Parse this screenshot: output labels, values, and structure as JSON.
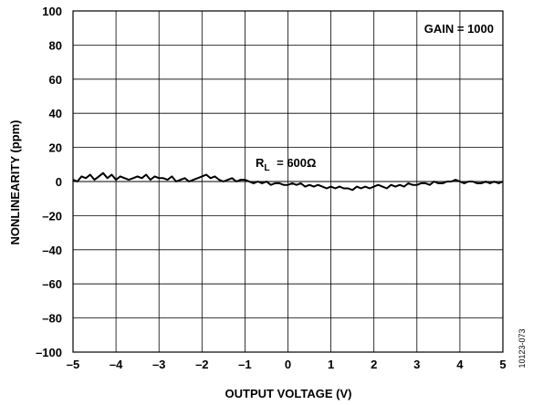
{
  "chart_data": {
    "type": "line",
    "title": "",
    "xlabel": "OUTPUT VOLTAGE (V)",
    "ylabel": "NONLINEARITY (ppm)",
    "xlim": [
      -5,
      5
    ],
    "ylim": [
      -100,
      100
    ],
    "x_ticks": [
      -5,
      -4,
      -3,
      -2,
      -1,
      0,
      1,
      2,
      3,
      4,
      5
    ],
    "y_ticks": [
      -100,
      -80,
      -60,
      -40,
      -20,
      0,
      20,
      40,
      60,
      80,
      100
    ],
    "x_tick_labels": [
      "–5",
      "–4",
      "–3",
      "–2",
      "–1",
      "0",
      "1",
      "2",
      "3",
      "4",
      "5"
    ],
    "y_tick_labels": [
      "–100",
      "–80",
      "–60",
      "–40",
      "–20",
      "0",
      "20",
      "40",
      "60",
      "80",
      "100"
    ],
    "grid": true,
    "legend": "none",
    "annotations": {
      "gain": "GAIN = 1000",
      "load_main": "R",
      "load_sub": "L",
      "load_value": " = 600Ω"
    },
    "figure_id": "10123-073",
    "series": [
      {
        "x": [
          -5.0,
          -4.9,
          -4.8,
          -4.7,
          -4.6,
          -4.5,
          -4.4,
          -4.3,
          -4.2,
          -4.1,
          -4.0,
          -3.9,
          -3.8,
          -3.7,
          -3.6,
          -3.5,
          -3.4,
          -3.3,
          -3.2,
          -3.1,
          -3.0,
          -2.9,
          -2.8,
          -2.7,
          -2.6,
          -2.5,
          -2.4,
          -2.3,
          -2.2,
          -2.1,
          -2.0,
          -1.9,
          -1.8,
          -1.7,
          -1.6,
          -1.5,
          -1.4,
          -1.3,
          -1.2,
          -1.1,
          -1.0,
          -0.9,
          -0.8,
          -0.7,
          -0.6,
          -0.5,
          -0.4,
          -0.3,
          -0.2,
          -0.1,
          0.0,
          0.1,
          0.2,
          0.3,
          0.4,
          0.5,
          0.6,
          0.7,
          0.8,
          0.9,
          1.0,
          1.1,
          1.2,
          1.3,
          1.4,
          1.5,
          1.6,
          1.7,
          1.8,
          1.9,
          2.0,
          2.1,
          2.2,
          2.3,
          2.4,
          2.5,
          2.6,
          2.7,
          2.8,
          2.9,
          3.0,
          3.1,
          3.2,
          3.3,
          3.4,
          3.5,
          3.6,
          3.7,
          3.8,
          3.9,
          4.0,
          4.1,
          4.2,
          4.3,
          4.4,
          4.5,
          4.6,
          4.7,
          4.8,
          4.9,
          5.0
        ],
        "values": [
          1,
          0,
          3,
          2,
          4,
          1,
          3,
          5,
          2,
          4,
          1,
          3,
          2,
          1,
          2,
          3,
          2,
          4,
          1,
          3,
          2,
          2,
          1,
          3,
          0,
          1,
          2,
          0,
          1,
          2,
          3,
          4,
          2,
          3,
          1,
          0,
          1,
          2,
          0,
          1,
          1,
          0,
          -1,
          0,
          -1,
          0,
          -2,
          -1,
          -1,
          -2,
          -2,
          -1,
          -2,
          -1,
          -3,
          -2,
          -3,
          -2,
          -3,
          -4,
          -3,
          -4,
          -3,
          -4,
          -4,
          -5,
          -3,
          -4,
          -3,
          -4,
          -3,
          -2,
          -3,
          -4,
          -2,
          -3,
          -2,
          -3,
          -1,
          -2,
          -2,
          -1,
          -1,
          -2,
          0,
          -1,
          -1,
          0,
          0,
          1,
          0,
          -1,
          0,
          0,
          -1,
          -1,
          0,
          -1,
          0,
          -1,
          0
        ]
      }
    ]
  }
}
